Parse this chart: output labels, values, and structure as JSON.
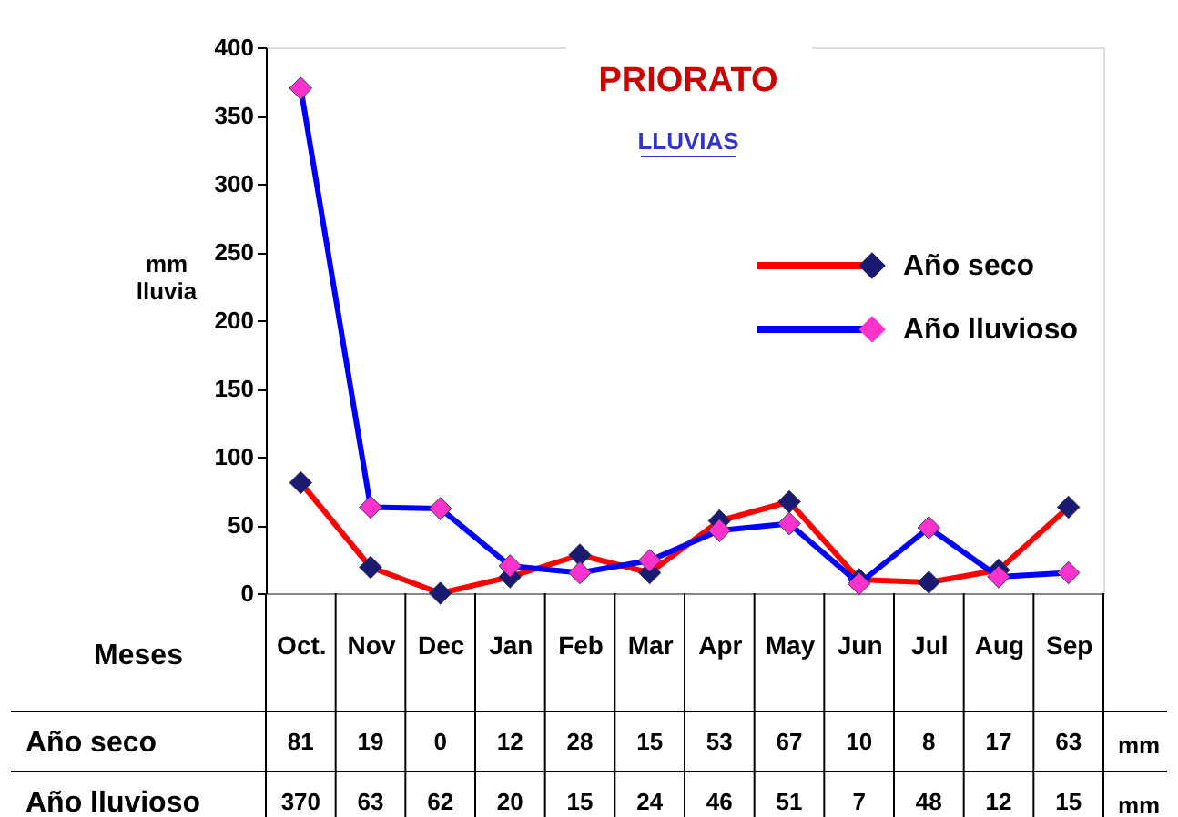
{
  "chart_data": {
    "type": "line",
    "title": "PRIORATO",
    "subtitle": "LLUVIAS",
    "xlabel": "Meses",
    "ylabel": "mm lluvia",
    "categories": [
      "Oct.",
      "Nov",
      "Dec",
      "Jan",
      "Feb",
      "Mar",
      "Apr",
      "May",
      "Jun",
      "Jul",
      "Aug",
      "Sep"
    ],
    "series": [
      {
        "name": "Año seco",
        "color": "#ff0000",
        "values": [
          81,
          19,
          0,
          12,
          28,
          15,
          53,
          67,
          10,
          8,
          17,
          63
        ]
      },
      {
        "name": "Año lluvioso",
        "color": "#0000ff",
        "values": [
          370,
          63,
          62,
          20,
          15,
          24,
          46,
          51,
          7,
          48,
          12,
          15
        ]
      }
    ],
    "ylim": [
      0,
      400
    ],
    "yticks": [
      0,
      50,
      100,
      150,
      200,
      250,
      300,
      350,
      400
    ],
    "grid": false,
    "legend": "top right",
    "marker": "diamond",
    "line_style": "solid",
    "data_labels": true,
    "annotations": [
      "mm",
      "mm"
    ]
  }
}
